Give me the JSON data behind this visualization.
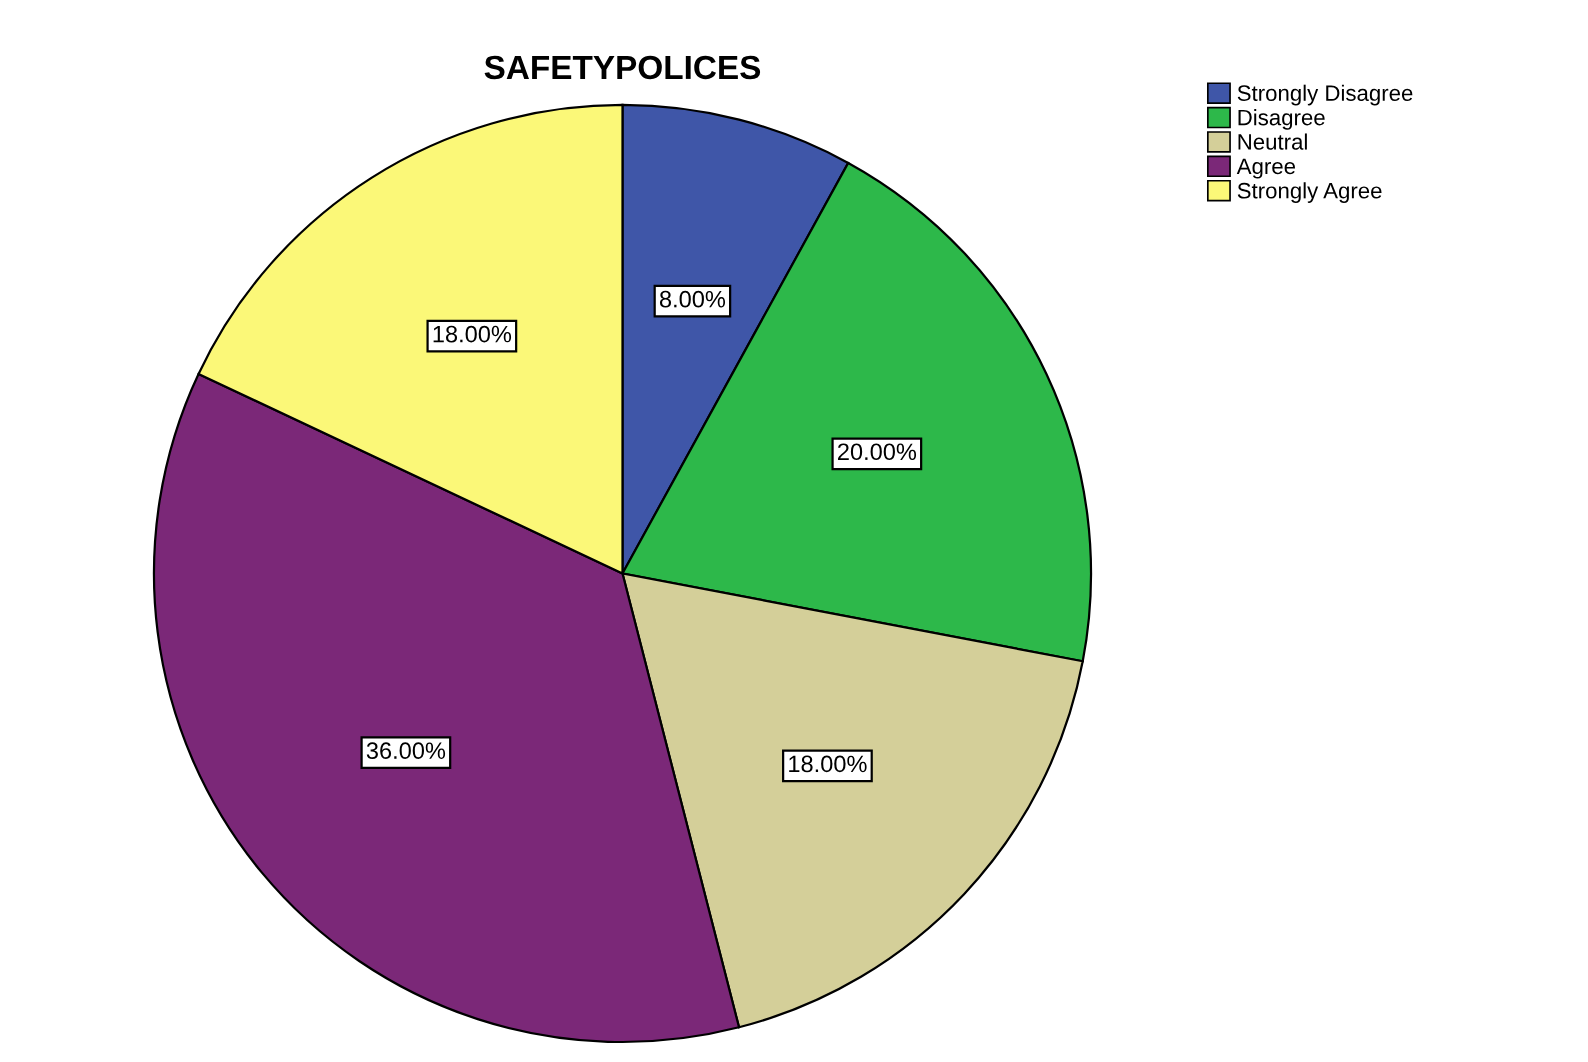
{
  "chart_data": {
    "type": "pie",
    "title": "SAFETYPOLICES",
    "categories": [
      "Strongly Disagree",
      "Disagree",
      "Neutral",
      "Agree",
      "Strongly Agree"
    ],
    "values": [
      8,
      20,
      18,
      36,
      18
    ],
    "value_labels": [
      "8.00%",
      "20.00%",
      "18.00%",
      "36.00%",
      "18.00%"
    ],
    "colors": [
      "#3f56a8",
      "#2db84a",
      "#d4cf99",
      "#7b2878",
      "#fbf878"
    ],
    "legend": "top right"
  }
}
